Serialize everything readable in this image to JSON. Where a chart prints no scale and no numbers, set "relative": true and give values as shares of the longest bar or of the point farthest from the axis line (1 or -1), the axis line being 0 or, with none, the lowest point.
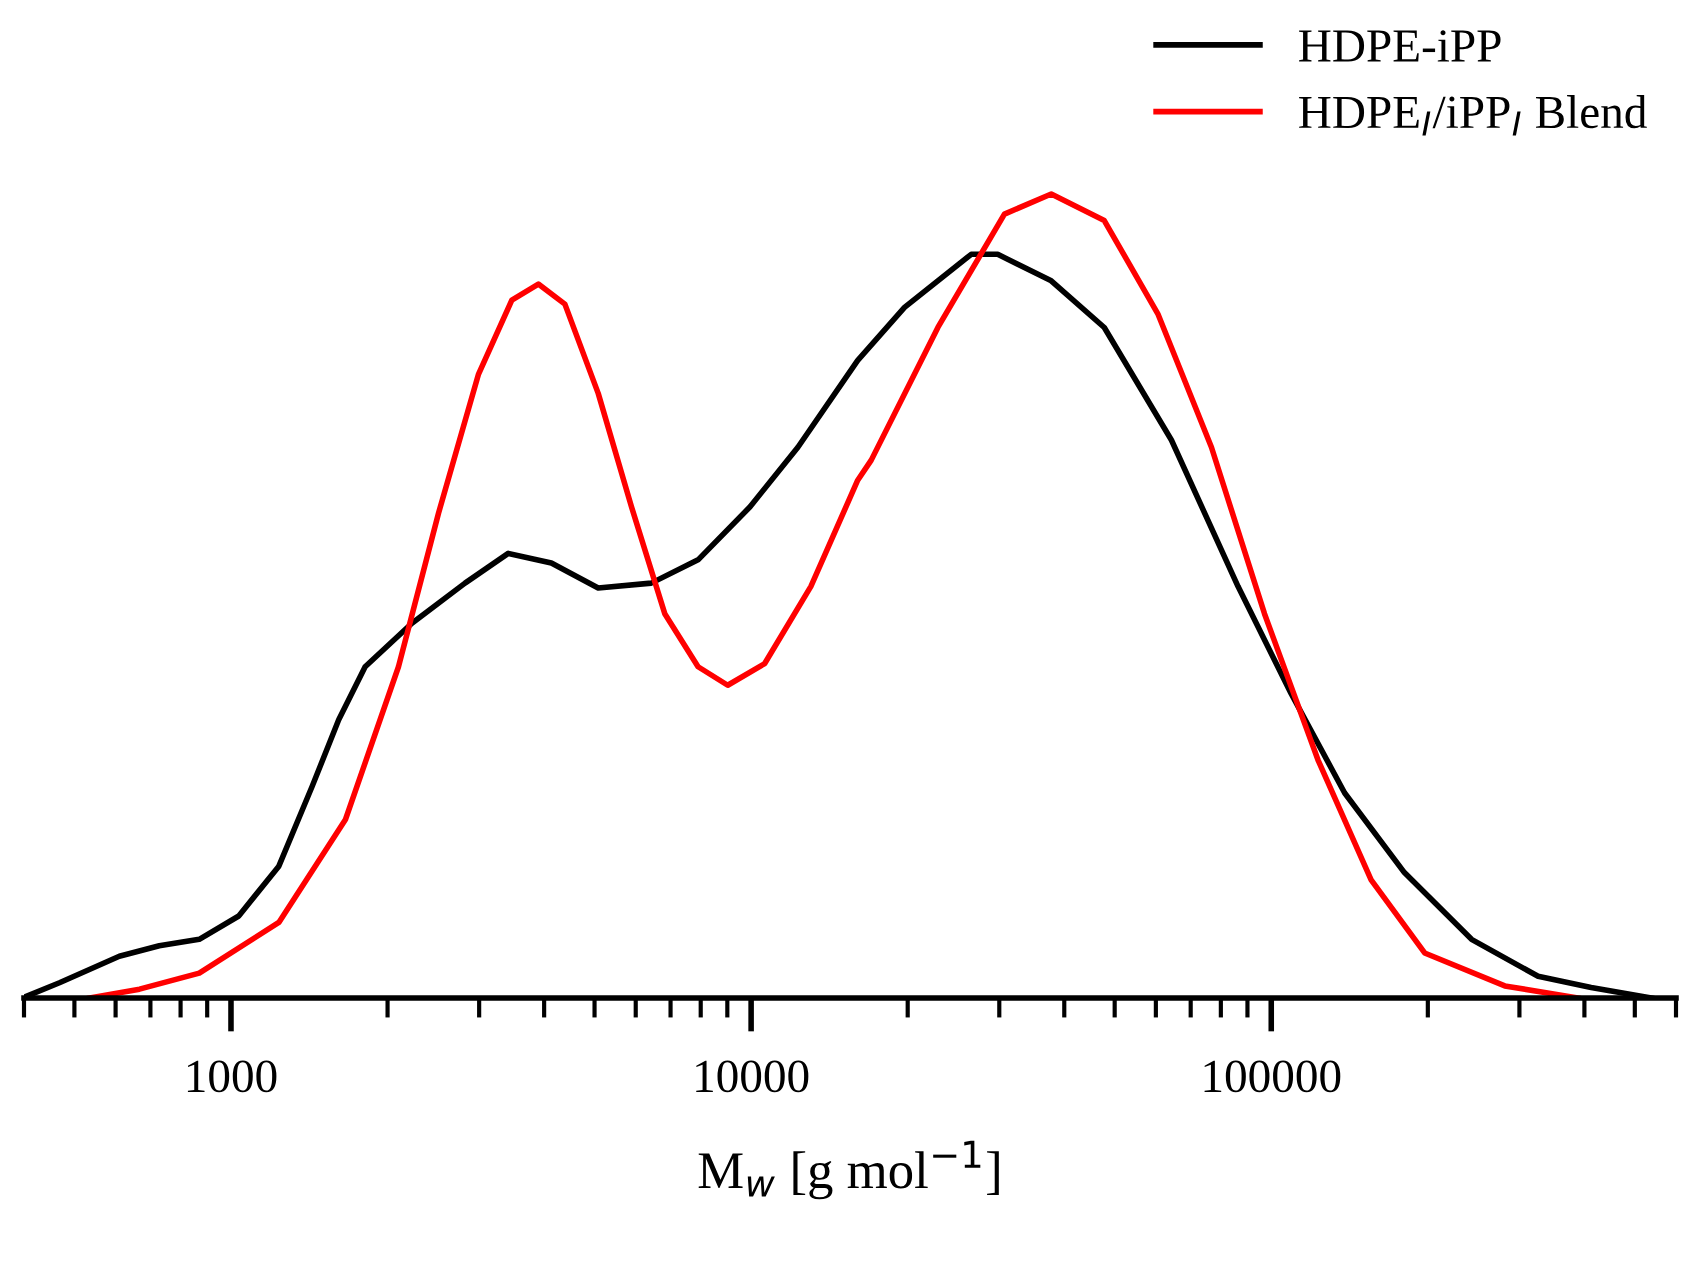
{
  "chart_data": {
    "type": "line",
    "xlabel": "M$_{w}$ [g mol$^{−1}$]",
    "log": "x",
    "relative": true,
    "xlim": [
      400,
      600000
    ],
    "xticks": [
      {
        "value": 400,
        "label": null
      },
      {
        "value": 500,
        "label": null
      },
      {
        "value": 600,
        "label": null
      },
      {
        "value": 700,
        "label": null
      },
      {
        "value": 800,
        "label": null
      },
      {
        "value": 900,
        "label": null
      },
      1000,
      {
        "value": 2000,
        "label": null
      },
      {
        "value": 3000,
        "label": null
      },
      {
        "value": 4000,
        "label": null
      },
      {
        "value": 5000,
        "label": null
      },
      {
        "value": 6000,
        "label": null
      },
      {
        "value": 7000,
        "label": null
      },
      {
        "value": 8000,
        "label": null
      },
      {
        "value": 9000,
        "label": null
      },
      10000,
      {
        "value": 20000,
        "label": null
      },
      {
        "value": 30000,
        "label": null
      },
      {
        "value": 40000,
        "label": null
      },
      {
        "value": 50000,
        "label": null
      },
      {
        "value": 60000,
        "label": null
      },
      {
        "value": 70000,
        "label": null
      },
      {
        "value": 80000,
        "label": null
      },
      {
        "value": 90000,
        "label": null
      },
      100000,
      {
        "value": 200000,
        "label": null
      },
      {
        "value": 300000,
        "label": null
      },
      {
        "value": 400000,
        "label": null
      },
      {
        "value": 500000,
        "label": null
      },
      {
        "value": 600000,
        "label": null
      }
    ],
    "tick_labels": "x",
    "grid": false,
    "legend": "top right",
    "line_style": "solid",
    "marker": "none",
    "series": [
      {
        "name": "HDPE-iPP",
        "color": "#000000",
        "x": [
          404,
          468,
          610,
          728,
          869,
          1035,
          1236,
          1432,
          1611,
          1811,
          2228,
          2818,
          3412,
          4130,
          5082,
          6427,
          7907,
          9954,
          12300,
          16030,
          19720,
          26490,
          29790,
          37760,
          47750,
          64270,
          86300,
          109100,
          138400,
          180300,
          242700,
          325800,
          412100,
          538300
        ],
        "values": [
          0.002,
          0.019,
          0.052,
          0.065,
          0.073,
          0.102,
          0.164,
          0.263,
          0.346,
          0.412,
          0.466,
          0.516,
          0.553,
          0.541,
          0.51,
          0.516,
          0.545,
          0.611,
          0.685,
          0.793,
          0.859,
          0.925,
          0.925,
          0.892,
          0.834,
          0.694,
          0.512,
          0.379,
          0.255,
          0.156,
          0.073,
          0.027,
          0.013,
          0
        ]
      },
      {
        "name": "HDPE$_{I}$/iPP$_{I}$ Blend",
        "color": "#ff0000",
        "x": [
          535,
          667,
          869,
          1236,
          1660,
          2099,
          2506,
          2992,
          3467,
          3899,
          4385,
          5082,
          5888,
          6823,
          7907,
          9016,
          10620,
          13030,
          16030,
          17020,
          22860,
          30690,
          37760,
          47750,
          60530,
          76740,
          97050,
          123000,
          155600,
          197200,
          281200,
          389000
        ],
        "values": [
          0,
          0.011,
          0.031,
          0.094,
          0.222,
          0.412,
          0.603,
          0.776,
          0.868,
          0.888,
          0.863,
          0.752,
          0.611,
          0.478,
          0.412,
          0.389,
          0.416,
          0.512,
          0.644,
          0.669,
          0.834,
          0.975,
          1.0,
          0.967,
          0.851,
          0.685,
          0.478,
          0.296,
          0.147,
          0.056,
          0.015,
          0
        ]
      }
    ]
  }
}
